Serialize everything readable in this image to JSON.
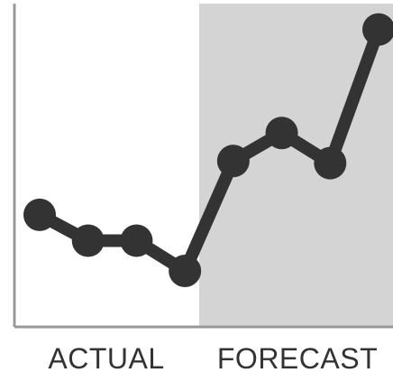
{
  "chart_data": {
    "type": "line",
    "title": "",
    "xlabel": "",
    "ylabel": "",
    "x": [
      1,
      2,
      3,
      4,
      5,
      6,
      7,
      8
    ],
    "series": [
      {
        "values": [
          52,
          40,
          40,
          26,
          77,
          90,
          76,
          138
        ]
      }
    ],
    "regions": [
      {
        "label": "ACTUAL",
        "x_start": 1,
        "x_end": 4
      },
      {
        "label": "FORECAST",
        "x_start": 4,
        "x_end": 8
      }
    ],
    "ylim": [
      0,
      150
    ],
    "grid": false,
    "legend": "none",
    "colors": {
      "line": "#333333",
      "forecast_background": "#d4d4d4",
      "axis": "#999999",
      "label": "#333333"
    }
  }
}
